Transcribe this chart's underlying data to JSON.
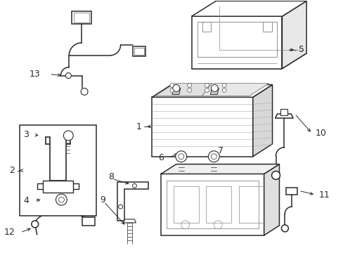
{
  "bg_color": "#ffffff",
  "line_color": "#2a2a2a",
  "label_color": "#000000",
  "figsize": [
    4.89,
    3.6
  ],
  "dpi": 100,
  "font_size": 9,
  "lw_main": 1.1,
  "lw_thin": 0.6,
  "lw_label": 0.7
}
